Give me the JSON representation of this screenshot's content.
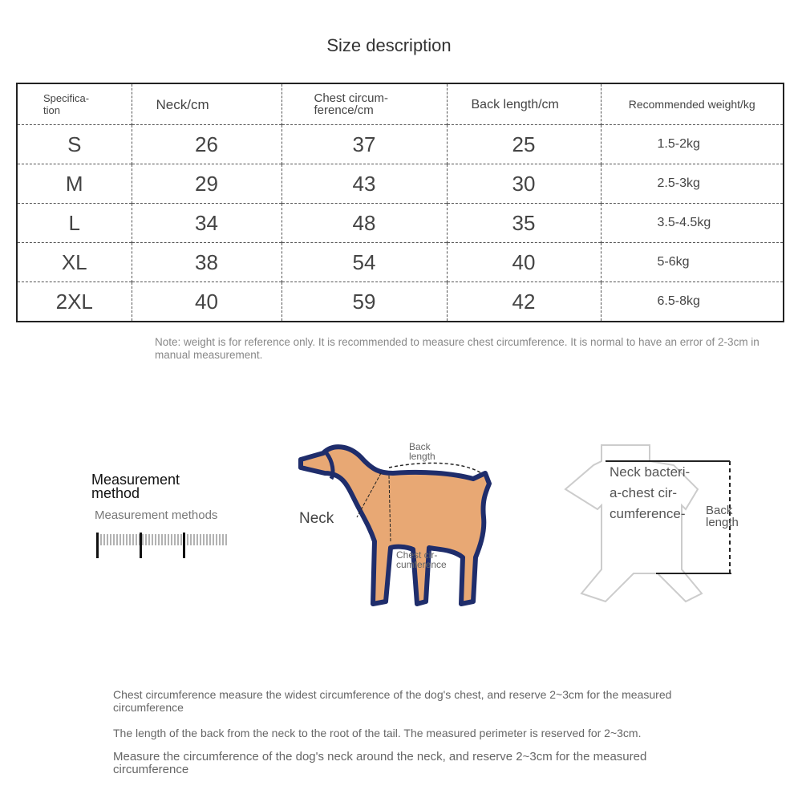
{
  "title": "Size description",
  "table": {
    "headers": [
      "Specifica-\ntion",
      "Neck/cm",
      "Chest circum-\nference/cm",
      "Back length/cm",
      "Recommended weight/kg"
    ],
    "rows": [
      [
        "S",
        "26",
        "37",
        "25",
        "1.5-2kg"
      ],
      [
        "M",
        "29",
        "43",
        "30",
        "2.5-3kg"
      ],
      [
        "L",
        "34",
        "48",
        "35",
        "3.5-4.5kg"
      ],
      [
        "XL",
        "38",
        "54",
        "40",
        "5-6kg"
      ],
      [
        "2XL",
        "40",
        "59",
        "42",
        "6.5-8kg"
      ]
    ]
  },
  "note": "Note: weight is for reference only. It is recommended to measure chest circumference. It is normal to have an error of 2-3cm in manual measurement.",
  "measurement": {
    "heading": "Measurement\nmethod",
    "subheading": "Measurement methods"
  },
  "dog_labels": {
    "back": "Back\nlength",
    "neck": "Neck",
    "chest": "Chest cir-\ncumference"
  },
  "garment_labels": {
    "neck_chest": "Neck bacteri-\na-chest cir-\ncumference-",
    "back": "Back\nlength"
  },
  "instructions": [
    "Chest circumference measure the widest circumference of the dog's chest, and reserve 2~3cm for the measured circumference",
    "The length of the back from the neck to the root of the tail. The measured perimeter is reserved for 2~3cm.",
    "Measure the circumference of the dog's neck around the neck, and reserve 2~3cm for the measured circumference"
  ],
  "colors": {
    "dog_fill": "#E8A874",
    "dog_outline": "#1F2D6B"
  }
}
